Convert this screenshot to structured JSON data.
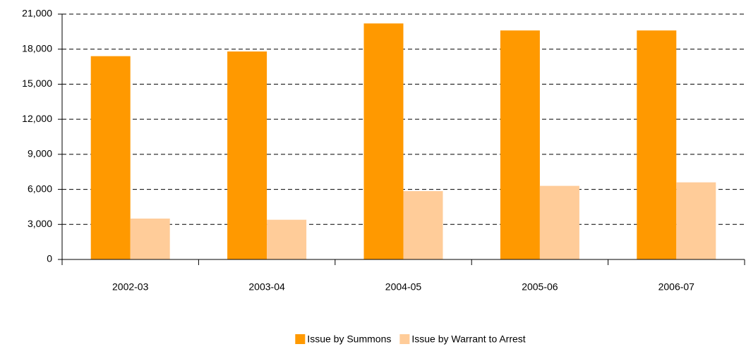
{
  "chart_data": {
    "type": "bar",
    "categories": [
      "2002-03",
      "2003-04",
      "2004-05",
      "2005-06",
      "2006-07"
    ],
    "series": [
      {
        "name": "Issue by Summons",
        "color": "#ff9900",
        "values": [
          17400,
          17800,
          20200,
          19600,
          19600
        ]
      },
      {
        "name": "Issue by Warrant to Arrest",
        "color": "#ffcc99",
        "values": [
          3500,
          3400,
          5850,
          6300,
          6600
        ]
      }
    ],
    "ylim": [
      0,
      21000
    ],
    "yticks": [
      0,
      {
        "value": 3000,
        "label": "3,000"
      },
      {
        "value": 6000,
        "label": "6,000"
      },
      {
        "value": 9000,
        "label": "9,000"
      },
      {
        "value": 12000,
        "label": "12,000"
      },
      {
        "value": 15000,
        "label": "15,000"
      },
      {
        "value": 18000,
        "label": "18,000"
      },
      {
        "value": 21000,
        "label": "21,000"
      }
    ],
    "grid": true,
    "legend": "bottom"
  }
}
